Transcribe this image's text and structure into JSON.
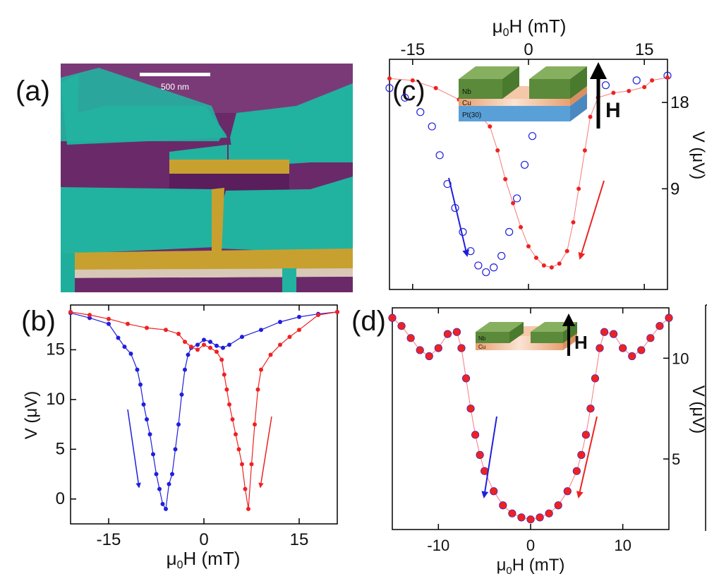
{
  "panels": {
    "a": {
      "label": "(a)",
      "scale_bar": "500 nm"
    },
    "b": {
      "label": "(b)"
    },
    "c": {
      "label": "(c)",
      "layers": [
        "Nb",
        "Cu",
        "Pt(30)"
      ],
      "field_label": "H"
    },
    "d": {
      "label": "(d)",
      "layers": [
        "Nb",
        "Cu"
      ],
      "field_label": "H"
    }
  },
  "colors": {
    "blue": "#1f1fdc",
    "red": "#ee2222",
    "teal": "#1fae9c",
    "purple": "#6a2a6a",
    "gold": "#c8a030",
    "nb": "#5a8a3a",
    "cu": "#e8a070",
    "pt": "#5aa0d8"
  },
  "chart_data": [
    {
      "panel": "b",
      "type": "line",
      "xlabel": "μ0H (mT)",
      "ylabel": "V (μV)",
      "xlim": [
        -21,
        21
      ],
      "ylim": [
        -2.5,
        19.5
      ],
      "xticks": [
        -15,
        0,
        15
      ],
      "yticks": [
        0,
        5,
        10,
        15
      ],
      "series": [
        {
          "color": "blue",
          "points": [
            [
              -21,
              18.7
            ],
            [
              -18,
              18.2
            ],
            [
              -15,
              17.6
            ],
            [
              -13.5,
              16.2
            ],
            [
              -12.5,
              15.3
            ],
            [
              -11.5,
              14.6
            ],
            [
              -10.5,
              13.0
            ],
            [
              -10,
              11.5
            ],
            [
              -9.5,
              9.5
            ],
            [
              -9,
              8.0
            ],
            [
              -8.5,
              6.5
            ],
            [
              -8,
              4.5
            ],
            [
              -7.5,
              2.5
            ],
            [
              -7,
              1.0
            ],
            [
              -6.5,
              -0.5
            ],
            [
              -6,
              -1.0
            ],
            [
              -5.5,
              1.5
            ],
            [
              -5,
              2.5
            ],
            [
              -4.5,
              5.0
            ],
            [
              -4,
              7.5
            ],
            [
              -3.5,
              10.5
            ],
            [
              -3,
              13.0
            ],
            [
              -2.5,
              14.5
            ],
            [
              -2,
              15.2
            ],
            [
              -1,
              15.5
            ],
            [
              0,
              16.0
            ],
            [
              1,
              15.8
            ],
            [
              2,
              15.4
            ],
            [
              3,
              15.2
            ],
            [
              4,
              15.5
            ],
            [
              6,
              16.3
            ],
            [
              9,
              17.0
            ],
            [
              12,
              17.8
            ],
            [
              15,
              18.3
            ],
            [
              18,
              18.6
            ],
            [
              21,
              18.8
            ]
          ]
        },
        {
          "color": "red",
          "points": [
            [
              -21,
              18.8
            ],
            [
              -18,
              18.5
            ],
            [
              -15,
              18.1
            ],
            [
              -12,
              17.6
            ],
            [
              -9,
              17.2
            ],
            [
              -6,
              17.0
            ],
            [
              -4,
              16.6
            ],
            [
              -3,
              15.8
            ],
            [
              -2,
              15.3
            ],
            [
              -1,
              15.0
            ],
            [
              0,
              15.5
            ],
            [
              1,
              15.2
            ],
            [
              2,
              14.8
            ],
            [
              2.8,
              14.0
            ],
            [
              3.2,
              12.5
            ],
            [
              3.6,
              11.0
            ],
            [
              4,
              9.5
            ],
            [
              4.5,
              8.0
            ],
            [
              5,
              6.5
            ],
            [
              5.5,
              5.0
            ],
            [
              6,
              3.5
            ],
            [
              6.5,
              1.0
            ],
            [
              7,
              -1.0
            ],
            [
              7.5,
              3.5
            ],
            [
              8,
              7.5
            ],
            [
              8.5,
              11.0
            ],
            [
              9,
              13.0
            ],
            [
              10.5,
              14.5
            ],
            [
              12,
              15.5
            ],
            [
              13.5,
              16.3
            ],
            [
              15,
              17.0
            ],
            [
              18,
              18.5
            ],
            [
              21,
              18.8
            ]
          ]
        }
      ]
    },
    {
      "panel": "c",
      "type": "scatter",
      "xlabel": "μ0H (mT)",
      "ylabel": "V (μV)",
      "xlim": [
        -18,
        18
      ],
      "ylim": [
        -1.5,
        22.5
      ],
      "xticks": [
        -15,
        0,
        15
      ],
      "yticks": [
        9,
        18
      ],
      "series": [
        {
          "color": "blue",
          "marker": "open-circle",
          "points": [
            [
              -18,
              19.5
            ],
            [
              -16,
              18.5
            ],
            [
              -14,
              17.0
            ],
            [
              -12.5,
              15.5
            ],
            [
              -11.5,
              12.5
            ],
            [
              -10.5,
              9.5
            ],
            [
              -9.5,
              7.0
            ],
            [
              -8.5,
              4.5
            ],
            [
              -7.5,
              2.5
            ],
            [
              -6.5,
              1.0
            ],
            [
              -5.5,
              0.3
            ],
            [
              -4.5,
              0.8
            ],
            [
              -3.5,
              2.0
            ],
            [
              -2.5,
              4.5
            ],
            [
              -1.5,
              8.0
            ],
            [
              -0.5,
              11.5
            ],
            [
              0.5,
              14.5
            ],
            [
              1.5,
              17.0
            ],
            [
              3,
              18.8
            ],
            [
              6,
              19.5
            ],
            [
              10,
              19.8
            ],
            [
              14,
              20.3
            ],
            [
              18,
              20.8
            ]
          ]
        },
        {
          "color": "red",
          "marker": "dot",
          "points": [
            [
              -18,
              20.5
            ],
            [
              -15,
              20.3
            ],
            [
              -12,
              19.5
            ],
            [
              -9,
              18.3
            ],
            [
              -7,
              17.2
            ],
            [
              -5,
              15.5
            ],
            [
              -4,
              13.0
            ],
            [
              -3,
              10.0
            ],
            [
              -2,
              7.5
            ],
            [
              -1,
              5.0
            ],
            [
              0,
              3.0
            ],
            [
              1,
              1.8
            ],
            [
              2,
              1.0
            ],
            [
              3,
              0.8
            ],
            [
              4,
              1.2
            ],
            [
              5,
              2.5
            ],
            [
              5.8,
              5.5
            ],
            [
              6.5,
              9.0
            ],
            [
              7.3,
              13.0
            ],
            [
              8,
              16.5
            ],
            [
              9,
              18.5
            ],
            [
              11,
              19.0
            ],
            [
              13,
              19.2
            ],
            [
              15,
              19.6
            ],
            [
              16,
              20.3
            ],
            [
              18,
              20.6
            ]
          ]
        }
      ]
    },
    {
      "panel": "d",
      "type": "scatter",
      "xlabel": "μ0H (mT)",
      "ylabel": "V (μV)",
      "xlim": [
        -15,
        15
      ],
      "ylim": [
        1.5,
        12.5
      ],
      "xticks": [
        -10,
        0,
        10
      ],
      "yticks": [
        5,
        10
      ],
      "series": [
        {
          "color": "blue",
          "marker": "open-circle",
          "points": [
            [
              -15,
              12.0
            ],
            [
              -14,
              11.6
            ],
            [
              -13,
              11.0
            ],
            [
              -12,
              10.4
            ],
            [
              -11,
              10.1
            ],
            [
              -10,
              10.5
            ],
            [
              -9,
              11.2
            ],
            [
              -8,
              11.3
            ],
            [
              -7.5,
              10.5
            ],
            [
              -7,
              9.0
            ],
            [
              -6.5,
              7.5
            ],
            [
              -6,
              6.2
            ],
            [
              -5.5,
              5.2
            ],
            [
              -5,
              4.4
            ],
            [
              -4,
              3.4
            ],
            [
              -3,
              2.7
            ],
            [
              -2,
              2.3
            ],
            [
              -1,
              2.1
            ],
            [
              0,
              2.0
            ],
            [
              1,
              2.1
            ],
            [
              2,
              2.3
            ],
            [
              3,
              2.7
            ],
            [
              4,
              3.4
            ],
            [
              5,
              4.4
            ],
            [
              5.5,
              5.2
            ],
            [
              6,
              6.2
            ],
            [
              6.5,
              7.5
            ],
            [
              7,
              9.0
            ],
            [
              7.5,
              10.5
            ],
            [
              8,
              11.3
            ],
            [
              9,
              11.2
            ],
            [
              10,
              10.5
            ],
            [
              11,
              10.1
            ],
            [
              12,
              10.4
            ],
            [
              13,
              11.0
            ],
            [
              14,
              11.6
            ],
            [
              15,
              12.0
            ]
          ]
        },
        {
          "color": "red",
          "marker": "dot",
          "points": [
            [
              -15,
              12.0
            ],
            [
              -14,
              11.6
            ],
            [
              -13,
              11.0
            ],
            [
              -12,
              10.4
            ],
            [
              -11,
              10.1
            ],
            [
              -10,
              10.5
            ],
            [
              -9,
              11.2
            ],
            [
              -8,
              11.3
            ],
            [
              -7.5,
              10.5
            ],
            [
              -7,
              9.0
            ],
            [
              -6.5,
              7.5
            ],
            [
              -6,
              6.2
            ],
            [
              -5.5,
              5.2
            ],
            [
              -5,
              4.4
            ],
            [
              -4,
              3.4
            ],
            [
              -3,
              2.7
            ],
            [
              -2,
              2.3
            ],
            [
              -1,
              2.1
            ],
            [
              0,
              2.0
            ],
            [
              1,
              2.1
            ],
            [
              2,
              2.3
            ],
            [
              3,
              2.7
            ],
            [
              4,
              3.4
            ],
            [
              5,
              4.4
            ],
            [
              5.5,
              5.2
            ],
            [
              6,
              6.2
            ],
            [
              6.5,
              7.5
            ],
            [
              7,
              9.0
            ],
            [
              7.5,
              10.5
            ],
            [
              8,
              11.3
            ],
            [
              9,
              11.2
            ],
            [
              10,
              10.5
            ],
            [
              11,
              10.1
            ],
            [
              12,
              10.4
            ],
            [
              13,
              11.0
            ],
            [
              14,
              11.6
            ],
            [
              15,
              12.0
            ]
          ]
        }
      ]
    }
  ]
}
